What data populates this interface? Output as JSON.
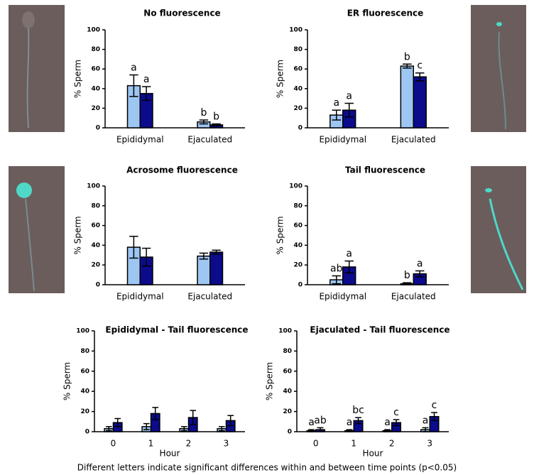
{
  "caption": "Different letters indicate significant differences within and between time points (p<0.05)",
  "chart_data": [
    {
      "type": "bar",
      "title": "No fluorescence",
      "ylabel": "% Sperm",
      "categories": [
        "Epididymal",
        "Ejaculated"
      ],
      "ylim": [
        0,
        100
      ],
      "yticks": [
        0,
        20,
        40,
        60,
        80,
        100
      ],
      "series": [
        {
          "color": "#9ec6f2",
          "values": [
            43,
            6
          ],
          "errors": [
            11,
            2
          ],
          "annotations": [
            "a",
            "b"
          ]
        },
        {
          "color": "#0b0b8c",
          "values": [
            35,
            3
          ],
          "errors": [
            7,
            1
          ],
          "annotations": [
            "a",
            "b"
          ]
        }
      ]
    },
    {
      "type": "bar",
      "title": "ER fluorescence",
      "ylabel": "% Sperm",
      "categories": [
        "Epididymal",
        "Ejaculated"
      ],
      "ylim": [
        0,
        100
      ],
      "yticks": [
        0,
        20,
        40,
        60,
        80,
        100
      ],
      "series": [
        {
          "color": "#9ec6f2",
          "values": [
            13,
            63
          ],
          "errors": [
            5,
            2
          ],
          "annotations": [
            "a",
            "b"
          ]
        },
        {
          "color": "#0b0b8c",
          "values": [
            18,
            52
          ],
          "errors": [
            7,
            4
          ],
          "annotations": [
            "a",
            "c"
          ]
        }
      ]
    },
    {
      "type": "bar",
      "title": "Acrosome fluorescence",
      "ylabel": "% Sperm",
      "categories": [
        "Epididymal",
        "Ejaculated"
      ],
      "ylim": [
        0,
        100
      ],
      "yticks": [
        0,
        20,
        40,
        60,
        80,
        100
      ],
      "series": [
        {
          "color": "#9ec6f2",
          "values": [
            38,
            29
          ],
          "errors": [
            11,
            3
          ]
        },
        {
          "color": "#0b0b8c",
          "values": [
            28,
            33
          ],
          "errors": [
            9,
            2
          ]
        }
      ]
    },
    {
      "type": "bar",
      "title": "Tail fluorescence",
      "ylabel": "% Sperm",
      "categories": [
        "Epididymal",
        "Ejaculated"
      ],
      "ylim": [
        0,
        100
      ],
      "yticks": [
        0,
        20,
        40,
        60,
        80,
        100
      ],
      "series": [
        {
          "color": "#9ec6f2",
          "values": [
            5,
            1
          ],
          "errors": [
            4,
            1
          ],
          "annotations": [
            "ab",
            "b"
          ]
        },
        {
          "color": "#0b0b8c",
          "values": [
            18,
            11
          ],
          "errors": [
            6,
            3
          ],
          "annotations": [
            "a",
            "a"
          ]
        }
      ]
    },
    {
      "type": "bar",
      "title": "Epididymal - Tail fluorescence",
      "ylabel": "% Sperm",
      "xlabel": "Hour",
      "categories": [
        "0",
        "1",
        "2",
        "3"
      ],
      "ylim": [
        0,
        100
      ],
      "yticks": [
        0,
        20,
        40,
        60,
        80,
        100
      ],
      "series": [
        {
          "color": "#9ec6f2",
          "values": [
            3,
            5,
            3,
            3
          ],
          "errors": [
            2,
            3,
            2,
            2
          ]
        },
        {
          "color": "#0b0b8c",
          "values": [
            9,
            18,
            14,
            11
          ],
          "errors": [
            4,
            6,
            7,
            5
          ]
        }
      ]
    },
    {
      "type": "bar",
      "title": "Ejaculated - Tail fluorescence",
      "ylabel": "% Sperm",
      "xlabel": "Hour",
      "categories": [
        "0",
        "1",
        "2",
        "3"
      ],
      "ylim": [
        0,
        100
      ],
      "yticks": [
        0,
        20,
        40,
        60,
        80,
        100
      ],
      "series": [
        {
          "color": "#9ec6f2",
          "values": [
            1,
            1,
            1,
            2
          ],
          "errors": [
            1,
            1,
            1,
            2
          ],
          "annotations": [
            "a",
            "a",
            "a",
            "a"
          ]
        },
        {
          "color": "#0b0b8c",
          "values": [
            2,
            11,
            9,
            15
          ],
          "errors": [
            2,
            3,
            3,
            4
          ],
          "annotations": [
            "ab",
            "bc",
            "c",
            "c"
          ]
        }
      ]
    }
  ]
}
